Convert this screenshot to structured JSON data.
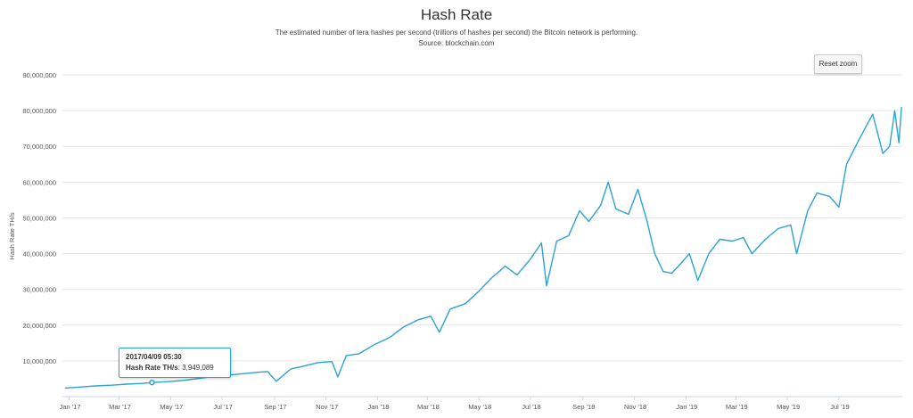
{
  "chart_data": {
    "type": "line",
    "title": "Hash Rate",
    "subtitle": "The estimated number of tera hashes per second (trillions of hashes per second) the Bitcoin network is performing.",
    "source": "Source: blockchain.com",
    "ylabel": "Hash Rate TH/s",
    "xlabel": "",
    "ylim": [
      0,
      90000000
    ],
    "yticks": [
      "10,000,000",
      "20,000,000",
      "30,000,000",
      "40,000,000",
      "50,000,000",
      "60,000,000",
      "70,000,000",
      "80,000,000",
      "90,000,000"
    ],
    "xticks": [
      "Jan '17",
      "Mar '17",
      "May '17",
      "Jul '17",
      "Sep '17",
      "Nov '17",
      "Jan '18",
      "Mar '18",
      "May '18",
      "Jul '18",
      "Sep '18",
      "Nov '18",
      "Jan '19",
      "Mar '19",
      "May '19",
      "Jul '19"
    ],
    "series": [
      {
        "color": "#2ba3d4",
        "points": [
          [
            "2016-12-27",
            2400000
          ],
          [
            "2017-01-15",
            2700000
          ],
          [
            "2017-02-01",
            3000000
          ],
          [
            "2017-02-20",
            3200000
          ],
          [
            "2017-03-10",
            3500000
          ],
          [
            "2017-03-28",
            3700000
          ],
          [
            "2017-04-09",
            3949089
          ],
          [
            "2017-04-28",
            4200000
          ],
          [
            "2017-05-15",
            4500000
          ],
          [
            "2017-06-01",
            5000000
          ],
          [
            "2017-06-20",
            5600000
          ],
          [
            "2017-07-08",
            6000000
          ],
          [
            "2017-07-25",
            6400000
          ],
          [
            "2017-08-12",
            6800000
          ],
          [
            "2017-08-24",
            7000000
          ],
          [
            "2017-09-03",
            4300000
          ],
          [
            "2017-09-20",
            7700000
          ],
          [
            "2017-10-05",
            8500000
          ],
          [
            "2017-10-22",
            9500000
          ],
          [
            "2017-11-08",
            9800000
          ],
          [
            "2017-11-15",
            5500000
          ],
          [
            "2017-11-25",
            11500000
          ],
          [
            "2017-12-10",
            12000000
          ],
          [
            "2017-12-28",
            14500000
          ],
          [
            "2018-01-15",
            16500000
          ],
          [
            "2018-02-01",
            19500000
          ],
          [
            "2018-02-18",
            21500000
          ],
          [
            "2018-03-05",
            22500000
          ],
          [
            "2018-03-15",
            18000000
          ],
          [
            "2018-03-28",
            24500000
          ],
          [
            "2018-04-15",
            26000000
          ],
          [
            "2018-05-01",
            29500000
          ],
          [
            "2018-05-15",
            33000000
          ],
          [
            "2018-06-01",
            36500000
          ],
          [
            "2018-06-15",
            34000000
          ],
          [
            "2018-07-01",
            38500000
          ],
          [
            "2018-07-14",
            43000000
          ],
          [
            "2018-07-20",
            31000000
          ],
          [
            "2018-08-01",
            43500000
          ],
          [
            "2018-08-15",
            45000000
          ],
          [
            "2018-08-28",
            52000000
          ],
          [
            "2018-09-08",
            49000000
          ],
          [
            "2018-09-22",
            53500000
          ],
          [
            "2018-10-01",
            60000000
          ],
          [
            "2018-10-10",
            52500000
          ],
          [
            "2018-10-25",
            51000000
          ],
          [
            "2018-11-05",
            58000000
          ],
          [
            "2018-11-16",
            49000000
          ],
          [
            "2018-11-25",
            40000000
          ],
          [
            "2018-12-05",
            35000000
          ],
          [
            "2018-12-15",
            34500000
          ],
          [
            "2018-12-25",
            37000000
          ],
          [
            "2019-01-05",
            40000000
          ],
          [
            "2019-01-15",
            32500000
          ],
          [
            "2019-01-28",
            40000000
          ],
          [
            "2019-02-10",
            44000000
          ],
          [
            "2019-02-25",
            43500000
          ],
          [
            "2019-03-10",
            44500000
          ],
          [
            "2019-03-20",
            40000000
          ],
          [
            "2019-04-05",
            44000000
          ],
          [
            "2019-04-20",
            47000000
          ],
          [
            "2019-05-05",
            48000000
          ],
          [
            "2019-05-12",
            40000000
          ],
          [
            "2019-05-25",
            52000000
          ],
          [
            "2019-06-05",
            57000000
          ],
          [
            "2019-06-20",
            56000000
          ],
          [
            "2019-07-01",
            53000000
          ],
          [
            "2019-07-10",
            65000000
          ],
          [
            "2019-07-25",
            72000000
          ],
          [
            "2019-08-10",
            79000000
          ],
          [
            "2019-08-22",
            68000000
          ],
          [
            "2019-08-30",
            70000000
          ],
          [
            "2019-09-05",
            80000000
          ],
          [
            "2019-09-10",
            71000000
          ],
          [
            "2019-09-13",
            81000000
          ]
        ]
      }
    ],
    "tooltip": {
      "date": "2017/04/09 05:30",
      "label": "Hash Rate TH/s",
      "value": "3,949,089"
    },
    "grid": true,
    "legend": "none"
  },
  "controls": {
    "reset_zoom_label": "Reset zoom"
  }
}
